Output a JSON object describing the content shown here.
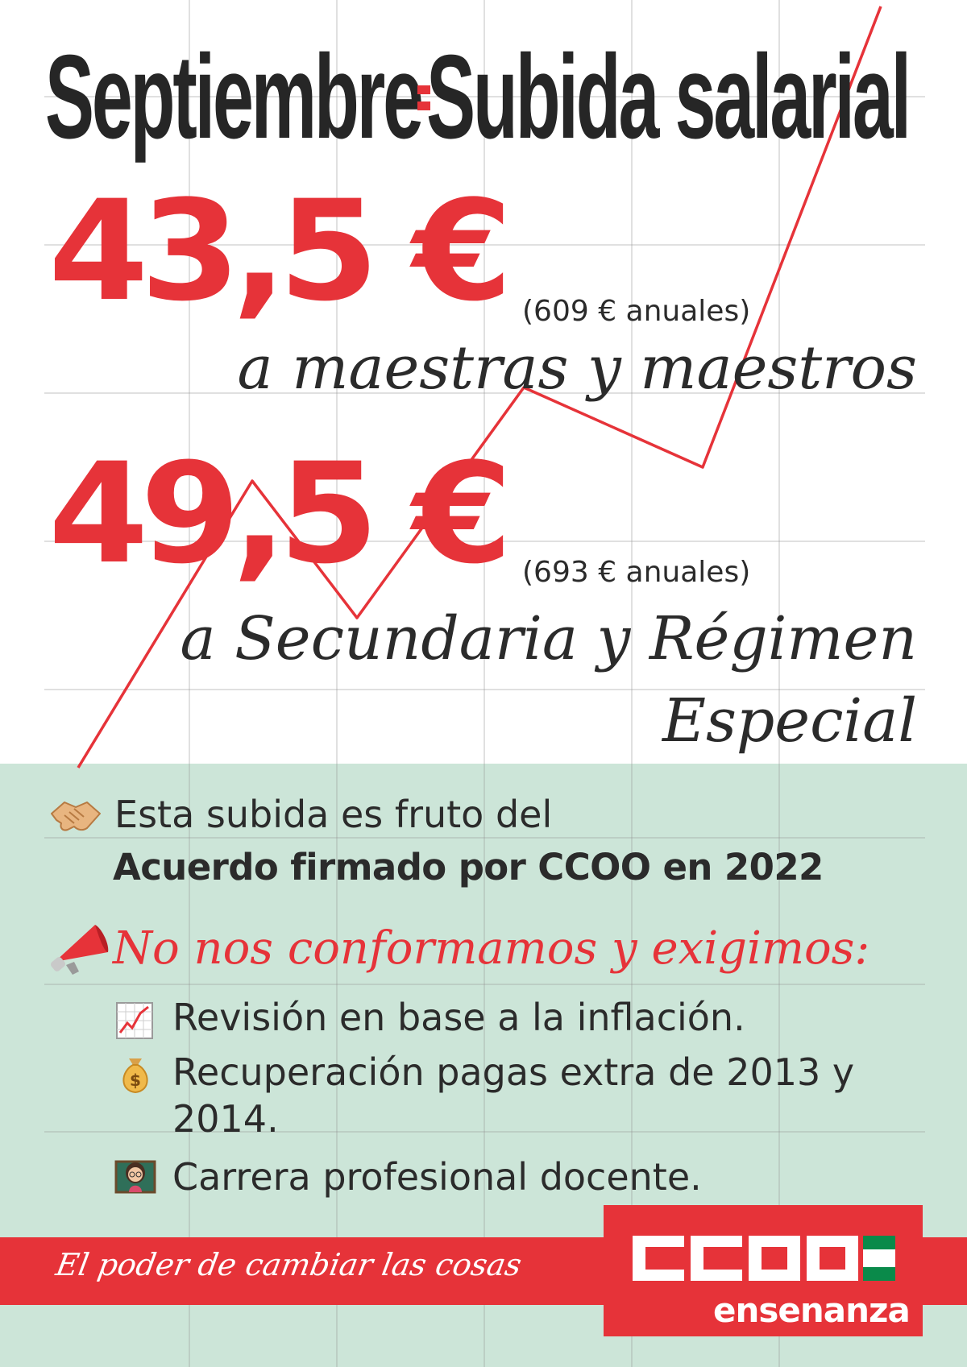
{
  "headline": {
    "left": "Septiembre",
    "right": "Subida salarial",
    "separator_icon": "equals-sign-icon"
  },
  "primary_teachers": {
    "amount": "43,5 €",
    "annual": "(609 € anuales)",
    "recipients": "a maestras y maestros"
  },
  "secondary_teachers": {
    "amount": "49,5 €",
    "annual": "(693 € anuales)",
    "recipients_line1": "a Secundaria y Régimen",
    "recipients_line2": "Especial"
  },
  "agreement": {
    "icon": "handshake-icon",
    "line1": "Esta subida es fruto del",
    "line2": "Acuerdo firmado por CCOO en 2022"
  },
  "demands": {
    "icon": "megaphone-icon",
    "heading": "No nos conformamos y exigimos:",
    "items": [
      {
        "icon": "rising-chart-icon",
        "lines": [
          "Revisión en base a la inflación."
        ]
      },
      {
        "icon": "money-bag-icon",
        "lines": [
          "Recuperación pagas extra de 2013 y",
          "2014."
        ]
      },
      {
        "icon": "teacher-icon",
        "lines": [
          "Carrera profesional docente."
        ]
      }
    ]
  },
  "footer": {
    "slogan": "El poder de cambiar las cosas",
    "logo_letters": "CCOO",
    "logo_name": "ensenanza"
  },
  "colors": {
    "accent_red": "#e63339",
    "panel_green": "#cce5d8",
    "text_dark": "#2b2b2b",
    "andalusia_green": "#0a8a4a"
  }
}
